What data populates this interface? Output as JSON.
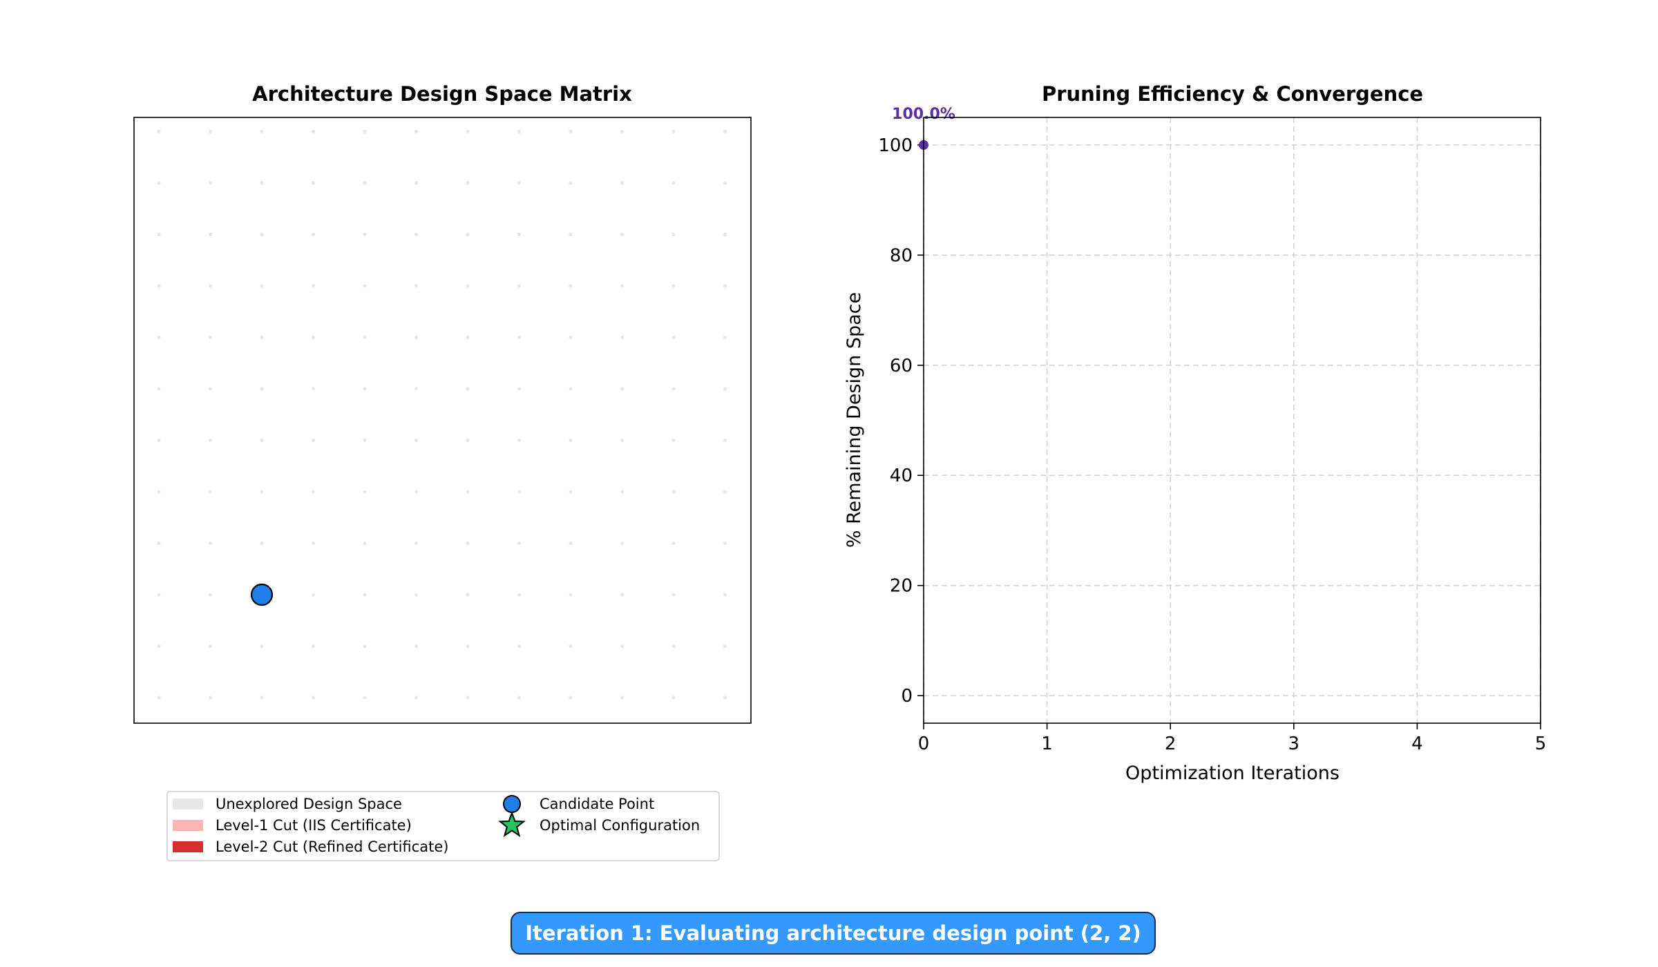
{
  "chart_data": [
    {
      "type": "scatter",
      "title": "Architecture Design Space Matrix",
      "grid": {
        "rows": 12,
        "cols": 12,
        "unexplored_color": "#e5e7e9"
      },
      "axes_visible": false,
      "candidate_point": {
        "x": 2,
        "y": 2,
        "color": "#1e7fe8"
      },
      "optimal_point": null,
      "cuts": []
    },
    {
      "type": "line",
      "title": "Pruning Efficiency & Convergence",
      "xlabel": "Optimization Iterations",
      "ylabel": "% Remaining Design Space",
      "xlim": [
        0,
        5
      ],
      "ylim": [
        -5,
        105
      ],
      "xticks": [
        "0",
        "1",
        "2",
        "3",
        "4",
        "5"
      ],
      "yticks": [
        "0",
        "20",
        "40",
        "60",
        "80",
        "100"
      ],
      "grid": true,
      "series": [
        {
          "x": [
            0
          ],
          "y": [
            100.0
          ],
          "color": "#5b2fa8",
          "labels": [
            "100.0%"
          ]
        }
      ]
    }
  ],
  "legend": {
    "placement": "below-left-panel",
    "items": [
      {
        "label": "Unexplored Design Space",
        "color": "#e5e7e9",
        "marker": "patch"
      },
      {
        "label": "Level-1 Cut (IIS Certificate)",
        "color": "#ffb3b3",
        "marker": "patch"
      },
      {
        "label": "Level-2 Cut (Refined Certificate)",
        "color": "#d32f2f",
        "marker": "patch"
      },
      {
        "label": "Candidate Point",
        "color": "#1e7fe8",
        "marker": "circle"
      },
      {
        "label": "Optimal Configuration",
        "color": "#22c55e",
        "marker": "star"
      }
    ]
  },
  "status": {
    "text": "Iteration 1: Evaluating architecture design point (2, 2)"
  }
}
